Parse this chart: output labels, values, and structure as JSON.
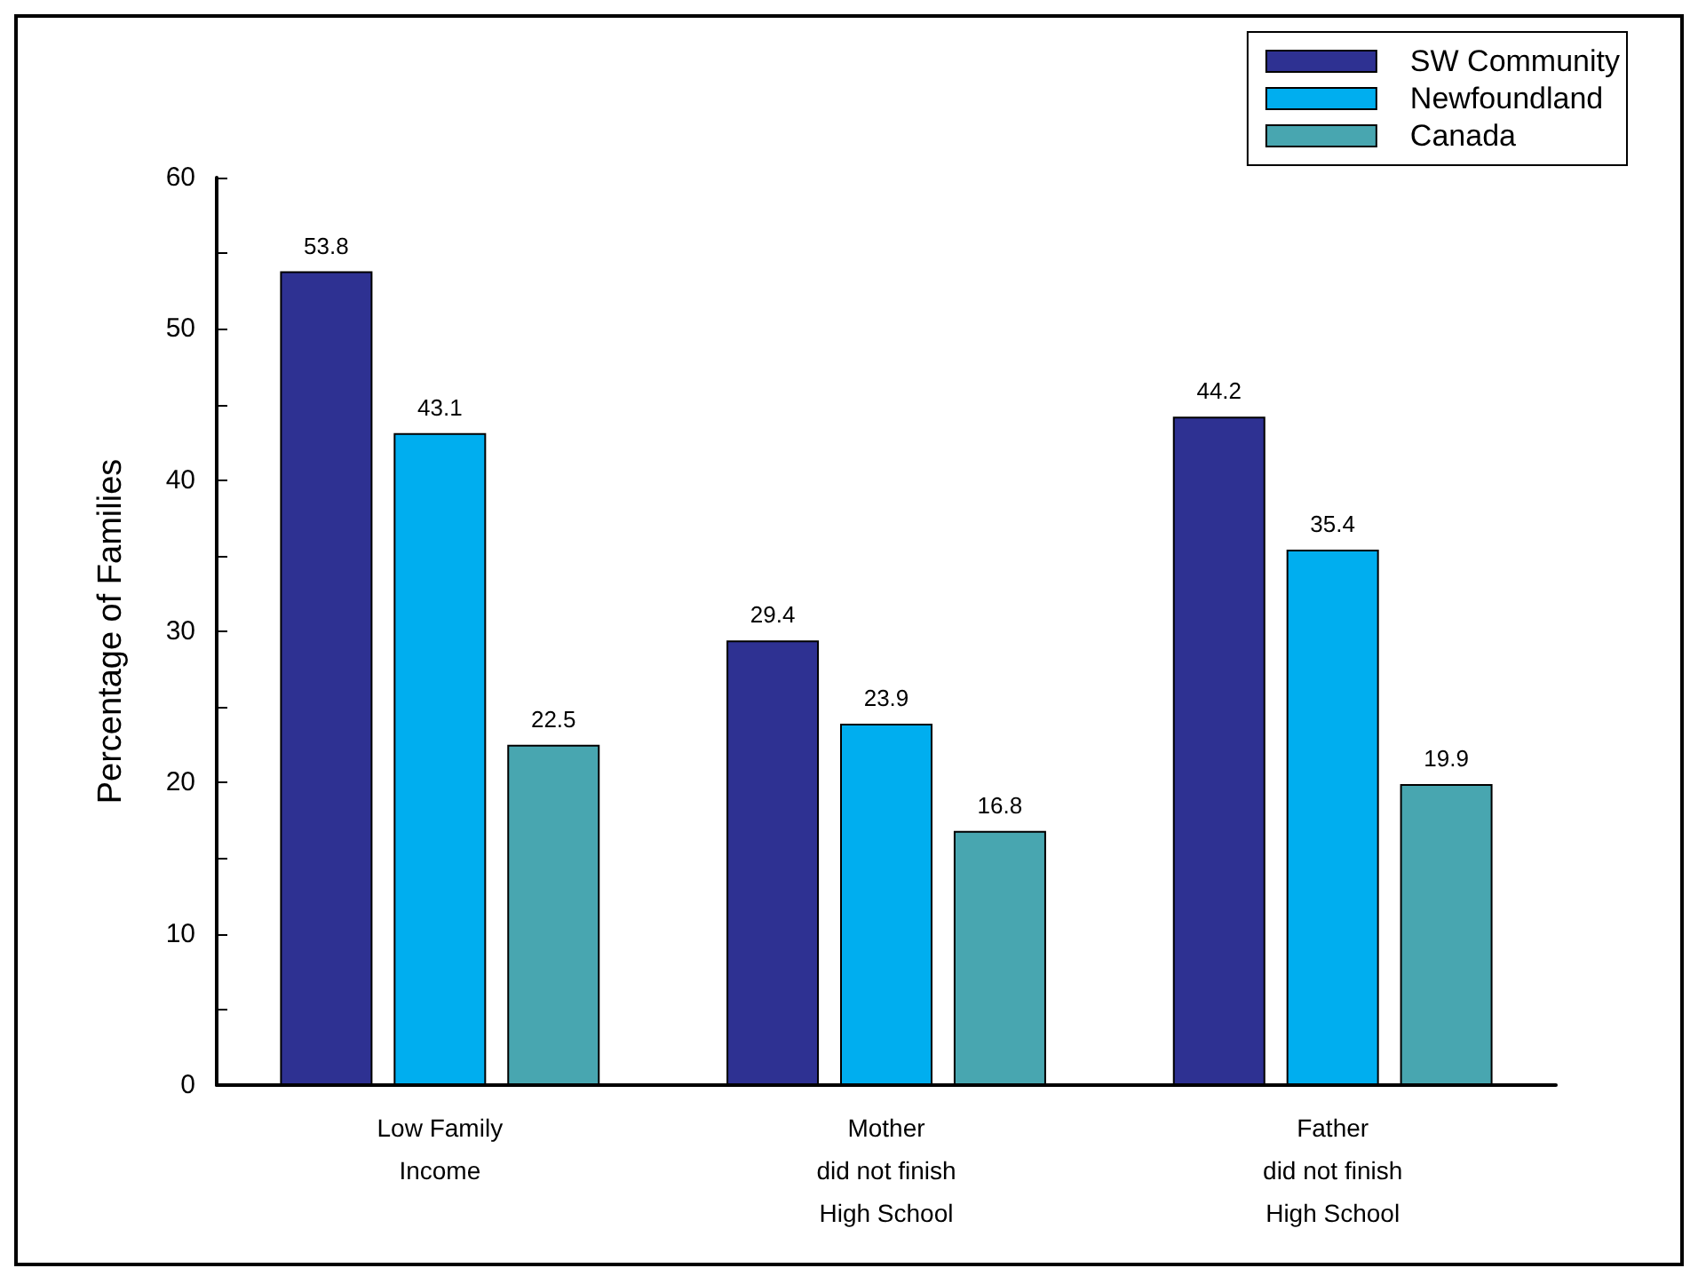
{
  "chart_data": {
    "type": "bar",
    "ylabel": "Percentage of Families",
    "categories": [
      "Low Family\nIncome",
      "Mother\ndid not finish\nHigh School",
      "Father\ndid not finish\nHigh School"
    ],
    "series": [
      {
        "name": "SW Community",
        "color": "#2e3192",
        "values": [
          53.8,
          29.4,
          44.2
        ]
      },
      {
        "name": "Newfoundland",
        "color": "#00aeef",
        "values": [
          43.1,
          23.9,
          35.4
        ]
      },
      {
        "name": "Canada",
        "color": "#48a6b0",
        "values": [
          22.5,
          16.8,
          19.9
        ]
      }
    ],
    "ylim": [
      0,
      60
    ],
    "yticks": [
      0,
      {
        "value": 5,
        "label": null
      },
      10,
      {
        "value": 15,
        "label": null
      },
      20,
      {
        "value": 25,
        "label": null
      },
      30,
      {
        "value": 35,
        "label": null
      },
      40,
      {
        "value": 45,
        "label": null
      },
      50,
      {
        "value": 55,
        "label": null
      },
      60
    ],
    "data_labels": true,
    "grid": false,
    "legend": "top right"
  }
}
